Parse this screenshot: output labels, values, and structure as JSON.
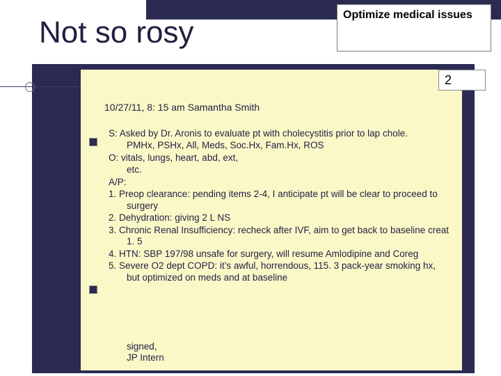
{
  "colors": {
    "navy": "#2a2a52",
    "note_bg": "#fbf8c8",
    "text": "#1f1f40",
    "white": "#ffffff",
    "border_gray": "#888888"
  },
  "callout": {
    "text": "Optimize medical issues"
  },
  "title": "Not so rosy",
  "number_box": {
    "value": "2"
  },
  "note": {
    "header": "10/27/11, 8: 15 am  Samantha Smith",
    "lines": {
      "s1": "S:  Asked by Dr. Aronis to evaluate pt with cholecystitis prior to lap chole.",
      "s2": "PMHx, PSHx, All, Meds, Soc.Hx, Fam.Hx, ROS",
      "o1": "O:  vitals, lungs, heart, abd, ext,",
      "o2": "etc.",
      "ap": "A/P:",
      "p1": "1.   Preop clearance: pending items 2-4, I anticipate pt will be clear to proceed to surgery",
      "p2": "2.   Dehydration:  giving 2 L NS",
      "p3": "3.   Chronic Renal Insufficiency:  recheck after IVF, aim to get back to baseline creat 1. 5",
      "p4": "4.   HTN: SBP 197/98 unsafe for surgery, will resume Amlodipine and Coreg",
      "p5": "5.   Severe O2 dept COPD: it’s awful, horrendous, 115. 3 pack-year smoking hx, but optimized on meds and at baseline"
    },
    "sign1": "signed,",
    "sign2": "JP Intern"
  }
}
